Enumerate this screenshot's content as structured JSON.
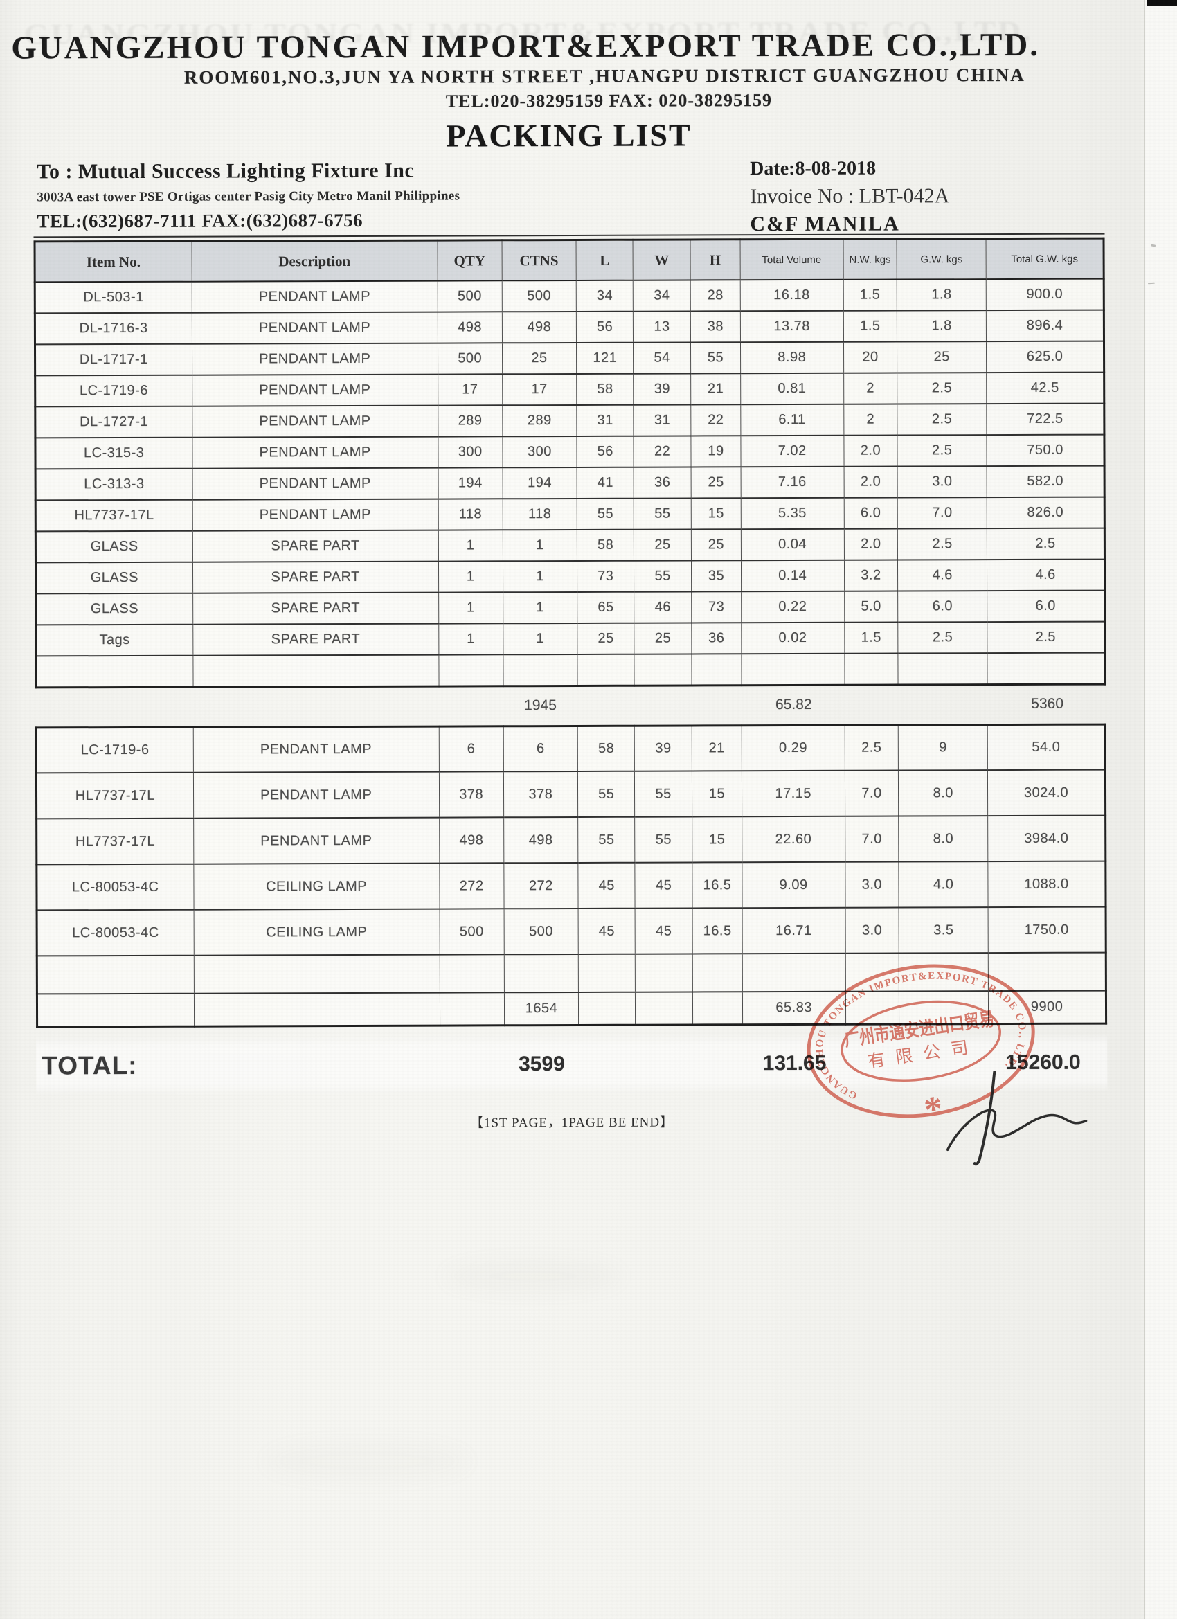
{
  "header": {
    "company_name": "GUANGZHOU TONGAN IMPORT&EXPORT TRADE CO.,LTD.",
    "address": "ROOM601,NO.3,JUN YA NORTH STREET ,HUANGPU DISTRICT GUANGZHOU CHINA",
    "tel_fax": "TEL:020-38295159 FAX: 020-38295159",
    "doc_title": "PACKING LIST"
  },
  "consignee": {
    "to_line": "To : Mutual Success Lighting Fixture Inc",
    "address": "3003A east tower PSE Ortigas center Pasig City Metro Manil Philippines",
    "tel_fax": "TEL:(632)687-7111  FAX:(632)687-6756"
  },
  "meta": {
    "date": "Date:8-08-2018",
    "invoice": "Invoice No :  LBT-042A",
    "terms": "C&F MANILA"
  },
  "table": {
    "columns": [
      "Item No.",
      "Description",
      "QTY",
      "CTNS",
      "L",
      "W",
      "H",
      "Total Volume",
      "N.W. kgs",
      "G.W. kgs",
      "Total G.W. kgs"
    ],
    "section1": {
      "rows": [
        [
          "DL-503-1",
          "PENDANT LAMP",
          "500",
          "500",
          "34",
          "34",
          "28",
          "16.18",
          "1.5",
          "1.8",
          "900.0"
        ],
        [
          "DL-1716-3",
          "PENDANT LAMP",
          "498",
          "498",
          "56",
          "13",
          "38",
          "13.78",
          "1.5",
          "1.8",
          "896.4"
        ],
        [
          "DL-1717-1",
          "PENDANT LAMP",
          "500",
          "25",
          "121",
          "54",
          "55",
          "8.98",
          "20",
          "25",
          "625.0"
        ],
        [
          "LC-1719-6",
          "PENDANT LAMP",
          "17",
          "17",
          "58",
          "39",
          "21",
          "0.81",
          "2",
          "2.5",
          "42.5"
        ],
        [
          "DL-1727-1",
          "PENDANT LAMP",
          "289",
          "289",
          "31",
          "31",
          "22",
          "6.11",
          "2",
          "2.5",
          "722.5"
        ],
        [
          "LC-315-3",
          "PENDANT LAMP",
          "300",
          "300",
          "56",
          "22",
          "19",
          "7.02",
          "2.0",
          "2.5",
          "750.0"
        ],
        [
          "LC-313-3",
          "PENDANT LAMP",
          "194",
          "194",
          "41",
          "36",
          "25",
          "7.16",
          "2.0",
          "3.0",
          "582.0"
        ],
        [
          "HL7737-17L",
          "PENDANT LAMP",
          "118",
          "118",
          "55",
          "55",
          "15",
          "5.35",
          "6.0",
          "7.0",
          "826.0"
        ],
        [
          "GLASS",
          "SPARE PART",
          "1",
          "1",
          "58",
          "25",
          "25",
          "0.04",
          "2.0",
          "2.5",
          "2.5"
        ],
        [
          "GLASS",
          "SPARE PART",
          "1",
          "1",
          "73",
          "55",
          "35",
          "0.14",
          "3.2",
          "4.6",
          "4.6"
        ],
        [
          "GLASS",
          "SPARE PART",
          "1",
          "1",
          "65",
          "46",
          "73",
          "0.22",
          "5.0",
          "6.0",
          "6.0"
        ],
        [
          "Tags",
          "SPARE PART",
          "1",
          "1",
          "25",
          "25",
          "36",
          "0.02",
          "1.5",
          "2.5",
          "2.5"
        ],
        [
          "",
          "",
          "",
          "",
          "",
          "",
          "",
          "",
          "",
          "",
          ""
        ]
      ],
      "subtotal": {
        "ctns": "1945",
        "volume": "65.82",
        "total_gw": "5360"
      }
    },
    "section2": {
      "rows": [
        [
          "LC-1719-6",
          "PENDANT LAMP",
          "6",
          "6",
          "58",
          "39",
          "21",
          "0.29",
          "2.5",
          "9",
          "54.0"
        ],
        [
          "HL7737-17L",
          "PENDANT LAMP",
          "378",
          "378",
          "55",
          "55",
          "15",
          "17.15",
          "7.0",
          "8.0",
          "3024.0"
        ],
        [
          "HL7737-17L",
          "PENDANT LAMP",
          "498",
          "498",
          "55",
          "55",
          "15",
          "22.60",
          "7.0",
          "8.0",
          "3984.0"
        ],
        [
          "LC-80053-4C",
          "CEILING LAMP",
          "272",
          "272",
          "45",
          "45",
          "16.5",
          "9.09",
          "3.0",
          "4.0",
          "1088.0"
        ],
        [
          "LC-80053-4C",
          "CEILING LAMP",
          "500",
          "500",
          "45",
          "45",
          "16.5",
          "16.71",
          "3.0",
          "3.5",
          "1750.0"
        ],
        [
          "",
          "",
          "",
          "",
          "",
          "",
          "",
          "",
          "",
          "",
          ""
        ]
      ],
      "subtotal": {
        "ctns": "1654",
        "volume": "65.83",
        "total_gw": "9900"
      }
    }
  },
  "grand_total": {
    "label": "TOTAL:",
    "ctns": "3599",
    "volume": "131.65",
    "total_gw": "15260.0"
  },
  "footer": {
    "page_note": "【1ST PAGE，1PAGE BE END】"
  },
  "stamp": {
    "ring_text": "GUANGZHOU TONGAN IMPORT&EXPORT TRADE CO., LTD.",
    "cn_line1": "广州市通安进出口贸易",
    "cn_line2": "有限公司",
    "star": "*"
  },
  "colors": {
    "stamp_red": "#cf5c4c",
    "header_bg": "#d6d9dd"
  }
}
